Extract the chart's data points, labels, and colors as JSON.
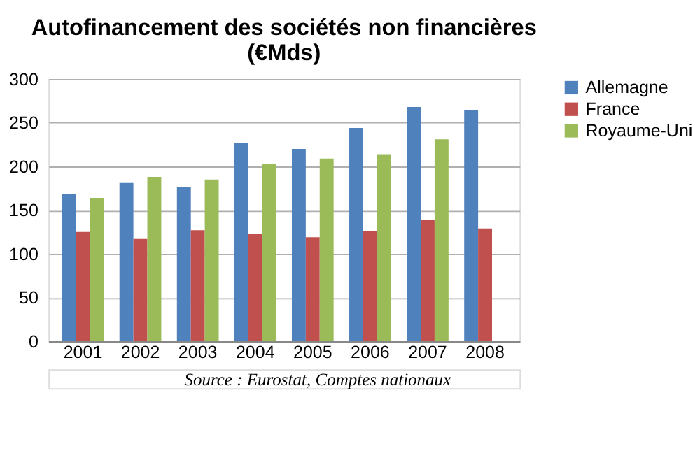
{
  "chart_data": {
    "type": "bar",
    "title": [
      "Autofinancement des sociétés non financières",
      "(€Mds)"
    ],
    "categories": [
      "2001",
      "2002",
      "2003",
      "2004",
      "2005",
      "2006",
      "2007",
      "2008"
    ],
    "series": [
      {
        "name": "Allemagne",
        "color": "#4f81bd",
        "values": [
          168,
          181,
          176,
          227,
          220,
          244,
          268,
          264
        ]
      },
      {
        "name": "France",
        "color": "#c0504d",
        "values": [
          125,
          117,
          127,
          123,
          119,
          126,
          139,
          129
        ]
      },
      {
        "name": "Royaume-Uni",
        "color": "#9bbb59",
        "values": [
          164,
          188,
          185,
          203,
          209,
          214,
          231,
          null
        ]
      }
    ],
    "ylim": [
      0,
      300
    ],
    "yticks": [
      0,
      50,
      100,
      150,
      200,
      250,
      300
    ],
    "grid": "y",
    "legend": "right",
    "annotations": [
      "Source : Eurostat, Comptes nationaux"
    ]
  }
}
